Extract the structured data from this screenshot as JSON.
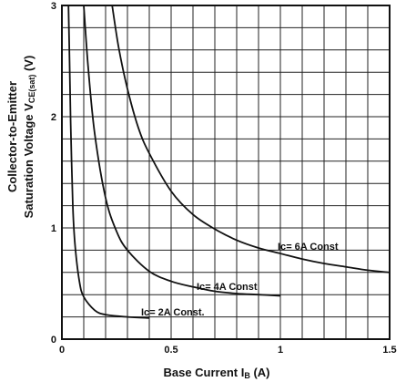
{
  "chart_data": {
    "type": "line",
    "xlabel": "Base Current I",
    "xlabel_sub": "B",
    "xlabel_unit": " (A)",
    "ylabel_line1": "Collector-to-Emitter",
    "ylabel_line2_main": "Saturation Voltage V",
    "ylabel_line2_sub": "CE(sat)",
    "ylabel_line2_unit": " (V)",
    "xlim": [
      0,
      1.5
    ],
    "ylim": [
      0,
      3
    ],
    "x_ticks": [
      {
        "value": 0,
        "label": "0"
      },
      {
        "value": 0.5,
        "label": "0.5"
      },
      {
        "value": 1.0,
        "label": "1"
      },
      {
        "value": 1.5,
        "label": "1.5"
      }
    ],
    "y_ticks": [
      {
        "value": 0,
        "label": "0"
      },
      {
        "value": 1,
        "label": "1"
      },
      {
        "value": 2,
        "label": "2"
      },
      {
        "value": 3,
        "label": "3"
      }
    ],
    "x_grid_step": 0.1,
    "y_grid_step": 0.2,
    "grid": true,
    "series": [
      {
        "name": "Ic = 2A Const.",
        "x": [
          0.03,
          0.035,
          0.04,
          0.05,
          0.06,
          0.08,
          0.1,
          0.15,
          0.2,
          0.3,
          0.4
        ],
        "y": [
          3.0,
          2.5,
          1.95,
          1.2,
          0.85,
          0.52,
          0.38,
          0.26,
          0.22,
          0.2,
          0.19
        ]
      },
      {
        "name": "Ic = 4A Const",
        "x": [
          0.1,
          0.12,
          0.15,
          0.2,
          0.25,
          0.3,
          0.4,
          0.5,
          0.6,
          0.7,
          0.8,
          0.9,
          1.0
        ],
        "y": [
          3.0,
          2.45,
          1.85,
          1.27,
          0.97,
          0.8,
          0.61,
          0.52,
          0.47,
          0.43,
          0.41,
          0.4,
          0.39
        ]
      },
      {
        "name": "Ic = 6A Const",
        "x": [
          0.23,
          0.26,
          0.3,
          0.35,
          0.4,
          0.5,
          0.6,
          0.7,
          0.8,
          0.9,
          1.0,
          1.1,
          1.2,
          1.3,
          1.4,
          1.5
        ],
        "y": [
          3.0,
          2.62,
          2.25,
          1.9,
          1.67,
          1.33,
          1.12,
          0.99,
          0.89,
          0.82,
          0.77,
          0.72,
          0.68,
          0.65,
          0.62,
          0.6
        ]
      }
    ],
    "annotations": [
      {
        "text_main": "Ic",
        "text_rest": "= 6A Const",
        "series": 2
      },
      {
        "text_main": "Ic",
        "text_rest": "= 4A Const",
        "series": 1
      },
      {
        "text_main": "Ic",
        "text_rest": "= 2A Const.",
        "series": 0
      }
    ]
  }
}
